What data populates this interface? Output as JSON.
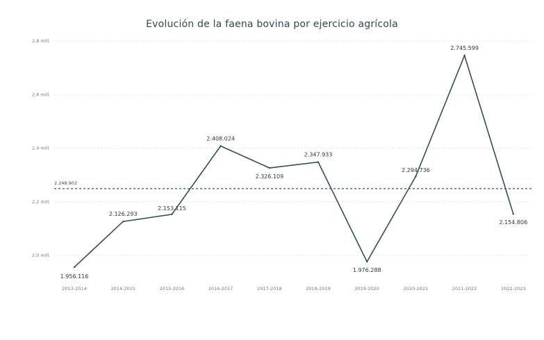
{
  "chart_data": {
    "type": "line",
    "title": "Evolución de la faena bovina por ejercicio agrícola",
    "categories": [
      "2013-2014",
      "2014-2015",
      "2015-2016",
      "2016-2017",
      "2017-2018",
      "2018-2019",
      "2019-2020",
      "2020-2021",
      "2021-2022",
      "2022-2023"
    ],
    "series": [
      {
        "values": [
          1956116,
          2126293,
          2153115,
          2408024,
          2326109,
          2347933,
          1976288,
          2294736,
          2745599,
          2154806
        ],
        "labels": [
          "1.956.116",
          "2.126.293",
          "2.153.115",
          "2.408.024",
          "2.326.109",
          "2.347.933",
          "1.976.288",
          "2.294.736",
          "2.745.599",
          "2.154.806"
        ],
        "color": "#2f4f4f"
      }
    ],
    "yticks": [
      2000000,
      2200000,
      2400000,
      2600000,
      2800000
    ],
    "ytick_labels": [
      "2,0 mill.",
      "2,2 mill.",
      "2,4 mill.",
      "2,6 mill.",
      "2,8 mill."
    ],
    "ylim": [
      2000000,
      2800000
    ],
    "reference_line": {
      "value": 2248902,
      "label": "2.248.902",
      "color": "#4a7c8c",
      "style": "dashed"
    },
    "grid": true
  }
}
